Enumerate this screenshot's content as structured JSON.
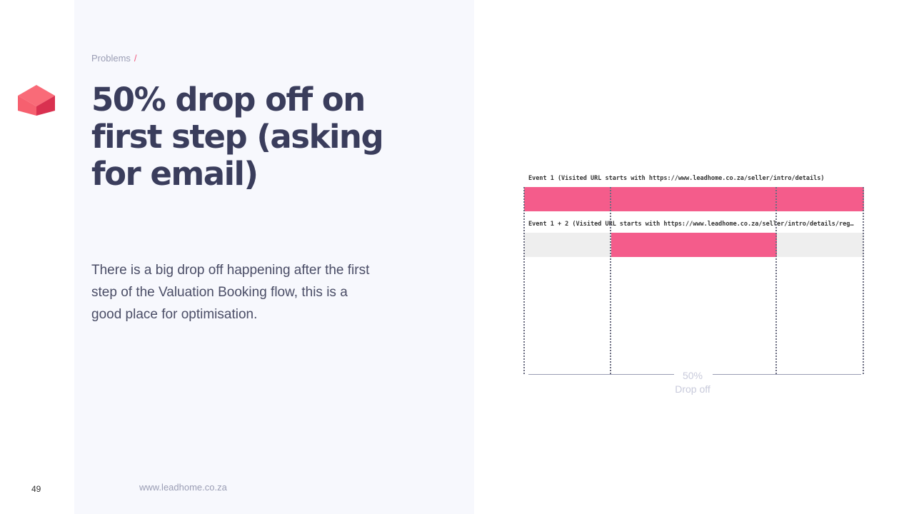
{
  "breadcrumb": {
    "section": "Problems",
    "separator": "/"
  },
  "title": "50% drop off on first step (asking for email)",
  "body": "There is a big drop off happening after the first step of the Valuation Booking flow, this is a good place for optimisation.",
  "footer": {
    "page_number": "49",
    "url": "www.leadhome.co.za"
  },
  "colors": {
    "accent": "#f45c8b",
    "title": "#3a3d5c",
    "panel": "#f7f8fd"
  },
  "icons": {
    "logo": "leadhome-logo-icon"
  },
  "funnel": {
    "event1_label": "Event 1 (Visited URL starts with https://www.leadhome.co.za/seller/intro/details)",
    "event2_label": "Event 1 + 2 (Visited URL starts with https://www.leadhome.co.za/seller/intro/details/reg…",
    "event1_fraction": 1.0,
    "event2_fraction": 0.5,
    "drop_percent": "50%",
    "drop_label": "Drop off"
  }
}
